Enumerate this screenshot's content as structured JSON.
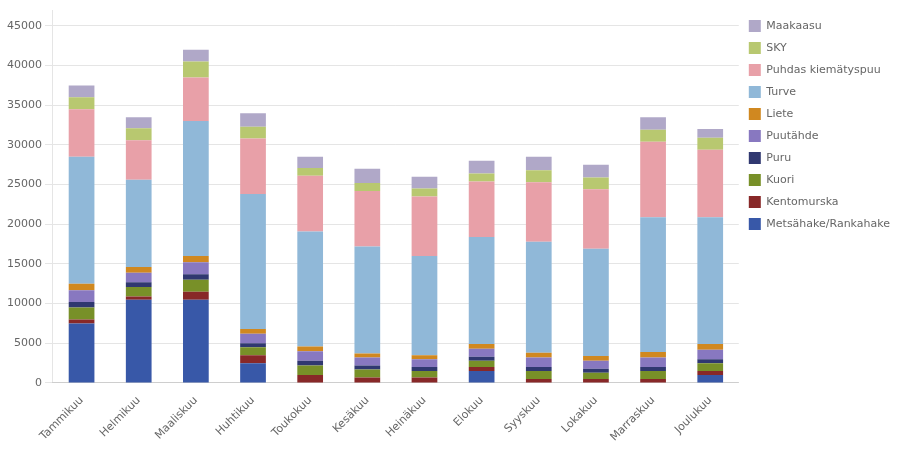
{
  "chart_data": {
    "type": "bar",
    "stacked": true,
    "grid": true,
    "legend": "right",
    "categories": [
      "Tammikuu",
      "Helmikuu",
      "Maaliskuu",
      "Huhtikuu",
      "Toukokuu",
      "Kesäkuu",
      "Heinäkuu",
      "Elokuu",
      "Syyskuu",
      "Lokakuu",
      "Marraskuu",
      "Joulukuu"
    ],
    "series": [
      {
        "name": "Metsähake/Rankahake",
        "color": "#3858a8",
        "values": [
          7500,
          10500,
          10500,
          2500,
          0,
          0,
          0,
          1500,
          0,
          0,
          0,
          1000
        ]
      },
      {
        "name": "Kentomurska",
        "color": "#882828",
        "values": [
          500,
          400,
          1000,
          1000,
          1000,
          700,
          700,
          500,
          500,
          500,
          500,
          500
        ]
      },
      {
        "name": "Kuori",
        "color": "#789028",
        "values": [
          1500,
          1200,
          1500,
          1000,
          1200,
          1000,
          800,
          800,
          1000,
          800,
          1000,
          1000
        ]
      },
      {
        "name": "Puru",
        "color": "#303870",
        "values": [
          700,
          600,
          700,
          500,
          600,
          500,
          500,
          500,
          500,
          500,
          500,
          500
        ]
      },
      {
        "name": "Puutähde",
        "color": "#8878c0",
        "values": [
          1500,
          1200,
          1500,
          1200,
          1200,
          1000,
          1000,
          1000,
          1200,
          1000,
          1200,
          1200
        ]
      },
      {
        "name": "Liete",
        "color": "#d08820",
        "values": [
          800,
          700,
          800,
          600,
          600,
          500,
          500,
          600,
          600,
          600,
          700,
          700
        ]
      },
      {
        "name": "Turve",
        "color": "#90b8d8",
        "values": [
          16000,
          11000,
          17000,
          17000,
          14500,
          13500,
          12500,
          13500,
          14000,
          13500,
          17000,
          16000
        ]
      },
      {
        "name": "Puhdas kiemätyspuu",
        "color": "#e8a0a8",
        "values": [
          6000,
          5000,
          5500,
          7000,
          7000,
          7000,
          7500,
          7000,
          7500,
          7500,
          9500,
          8500
        ]
      },
      {
        "name": "SKY",
        "color": "#b8c870",
        "values": [
          1500,
          1500,
          2000,
          1500,
          1000,
          1000,
          1000,
          1000,
          1500,
          1500,
          1500,
          1500
        ]
      },
      {
        "name": "Maakaasu",
        "color": "#b0a8c8",
        "values": [
          1500,
          1400,
          1500,
          1700,
          1400,
          1800,
          1500,
          1600,
          1700,
          1600,
          1600,
          1100
        ]
      }
    ],
    "ylim": [
      0,
      47000
    ],
    "yticks": [
      0,
      5000,
      10000,
      15000,
      20000,
      25000,
      30000,
      35000,
      40000,
      45000
    ]
  }
}
